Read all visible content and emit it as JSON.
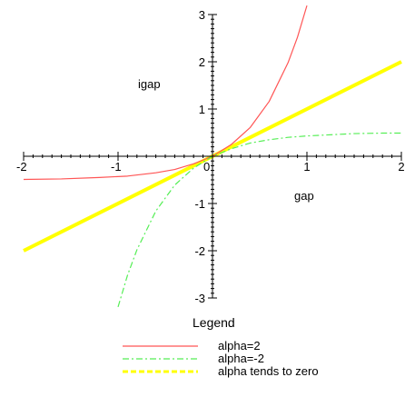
{
  "chart_data": {
    "type": "line",
    "title": "",
    "xlabel": "gap",
    "ylabel": "igap",
    "xlim": [
      -2,
      2
    ],
    "ylim": [
      -3,
      3
    ],
    "x_ticks": [
      -2,
      -1,
      0,
      1,
      2
    ],
    "y_ticks": [
      -3,
      -2,
      -1,
      0,
      1,
      2,
      3
    ],
    "x_tick_labels": [
      "-2",
      "-1",
      "0",
      "1",
      "2"
    ],
    "y_tick_labels": [
      "-3",
      "-2",
      "-1",
      "0",
      "1",
      "2",
      "3"
    ],
    "grid": false,
    "legend": {
      "title": "Legend",
      "placement": "bottom",
      "entries": [
        {
          "label": "alpha=2",
          "color": "#ff5555",
          "style": "solid"
        },
        {
          "label": "alpha=-2",
          "color": "#55ee55",
          "style": "dashdot"
        },
        {
          "label": "alpha tends to zero",
          "color": "#ffff00",
          "style": "dashed-thick"
        }
      ]
    },
    "series": [
      {
        "name": "alpha=2",
        "color": "#ff5555",
        "x": [
          -2.0,
          -1.6,
          -1.2,
          -0.9,
          -0.6,
          -0.4,
          -0.2,
          0.0,
          0.2,
          0.4,
          0.6,
          0.8,
          0.9,
          1.0
        ],
        "y": [
          -0.49,
          -0.48,
          -0.45,
          -0.42,
          -0.35,
          -0.28,
          -0.16,
          0.0,
          0.25,
          0.61,
          1.16,
          1.98,
          2.52,
          3.19
        ]
      },
      {
        "name": "alpha=-2",
        "color": "#55ee55",
        "x": [
          -1.0,
          -0.9,
          -0.8,
          -0.6,
          -0.4,
          -0.2,
          0.0,
          0.2,
          0.4,
          0.6,
          0.8,
          1.0,
          1.2,
          1.5,
          1.8,
          2.0
        ],
        "y": [
          -3.19,
          -2.52,
          -1.98,
          -1.16,
          -0.61,
          -0.25,
          0.0,
          0.16,
          0.28,
          0.35,
          0.4,
          0.43,
          0.45,
          0.48,
          0.49,
          0.49
        ]
      },
      {
        "name": "alpha tends to zero",
        "color": "#ffff00",
        "x": [
          -2.0,
          2.0
        ],
        "y": [
          -2.0,
          2.0
        ]
      }
    ]
  }
}
